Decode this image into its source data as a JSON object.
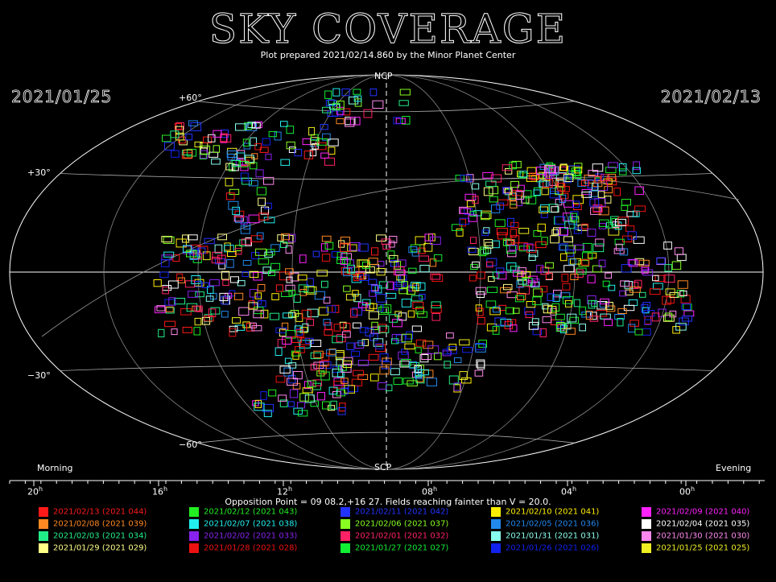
{
  "header": {
    "title": "SKY COVERAGE",
    "subtitle": "Plot prepared 2021/02/14.860 by the Minor Planet Center",
    "date_left": "2021/01/25",
    "date_right": "2021/02/13"
  },
  "map_labels": {
    "ncp": "NCP",
    "scp": "SCP",
    "dec_p60": "+60°",
    "dec_p30": "+30°",
    "dec_m30": "−30°",
    "dec_m60": "−60°",
    "morning": "Morning",
    "evening": "Evening"
  },
  "ra_axis": {
    "ticks": [
      {
        "h": "20",
        "sup": "h"
      },
      {
        "h": "16",
        "sup": "h"
      },
      {
        "h": "12",
        "sup": "h"
      },
      {
        "h": "08",
        "sup": "h"
      },
      {
        "h": "04",
        "sup": "h"
      },
      {
        "h": "00",
        "sup": "h"
      }
    ]
  },
  "opposition_text": "Opposition Point = 09 08.2,+16 27.  Fields reaching fainter than V = 20.0.",
  "legend": [
    {
      "label": "2021/02/13 (2021 044)",
      "color": "#ff1a1a"
    },
    {
      "label": "2021/02/12 (2021 043)",
      "color": "#22ee22"
    },
    {
      "label": "2021/02/11 (2021 042)",
      "color": "#2233ff"
    },
    {
      "label": "2021/02/10 (2021 041)",
      "color": "#ffee00"
    },
    {
      "label": "2021/02/09 (2021 040)",
      "color": "#ff22ff"
    },
    {
      "label": "2021/02/08 (2021 039)",
      "color": "#ff8822"
    },
    {
      "label": "2021/02/07 (2021 038)",
      "color": "#22eeee"
    },
    {
      "label": "2021/02/06 (2021 037)",
      "color": "#88ff22"
    },
    {
      "label": "2021/02/05 (2021 036)",
      "color": "#2288ee"
    },
    {
      "label": "2021/02/04 (2021 035)",
      "color": "#ffffff"
    },
    {
      "label": "2021/02/03 (2021 034)",
      "color": "#22ee88"
    },
    {
      "label": "2021/02/02 (2021 033)",
      "color": "#8822ee"
    },
    {
      "label": "2021/02/01 (2021 032)",
      "color": "#ff2266"
    },
    {
      "label": "2021/01/31 (2021 031)",
      "color": "#88ffee"
    },
    {
      "label": "2021/01/30 (2021 030)",
      "color": "#ff88ee"
    },
    {
      "label": "2021/01/29 (2021 029)",
      "color": "#ffff88"
    },
    {
      "label": "2021/01/28 (2021 028)",
      "color": "#ee1111"
    },
    {
      "label": "2021/01/27 (2021 027)",
      "color": "#11ee33"
    },
    {
      "label": "2021/01/26 (2021 026)",
      "color": "#1122ee"
    },
    {
      "label": "2021/01/25 (2021 025)",
      "color": "#eeee22"
    }
  ]
}
